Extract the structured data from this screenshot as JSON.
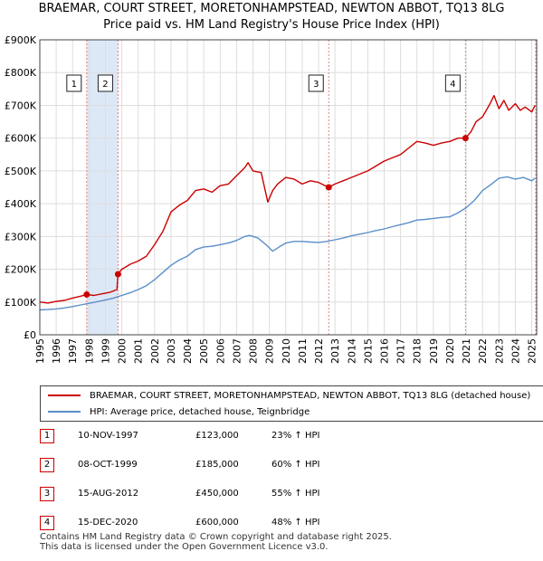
{
  "title_line1": "BRAEMAR, COURT STREET, MORETONHAMPSTEAD, NEWTON ABBOT, TQ13 8LG",
  "title_line2": "Price paid vs. HM Land Registry's House Price Index (HPI)",
  "colors": {
    "property": "#cc0000",
    "hpi": "#5b8fc9",
    "span": "#dde8f7",
    "grid": "#dddddd",
    "vline": "#e08080"
  },
  "chart_data": {
    "type": "line",
    "title": "Price paid vs. HM Land Registry's House Price Index (HPI)",
    "xlim": [
      1995,
      2025.3
    ],
    "ylim": [
      0,
      900000
    ],
    "x_ticks": [
      1995,
      1996,
      1997,
      1998,
      1999,
      2000,
      2001,
      2002,
      2003,
      2004,
      2005,
      2006,
      2007,
      2008,
      2009,
      2010,
      2011,
      2012,
      2013,
      2014,
      2015,
      2016,
      2017,
      2018,
      2019,
      2020,
      2021,
      2022,
      2023,
      2024,
      2025
    ],
    "y_ticks": [
      0,
      100000,
      200000,
      300000,
      400000,
      500000,
      600000,
      700000,
      800000,
      900000
    ],
    "y_tick_labels": [
      "£0",
      "£100K",
      "£200K",
      "£300K",
      "£400K",
      "£500K",
      "£600K",
      "£700K",
      "£800K",
      "£900K"
    ],
    "grid": true,
    "series": [
      {
        "name": "BRAEMAR, COURT STREET, MORETONHAMPSTEAD, NEWTON ABBOT, TQ13 8LG (detached house)",
        "x": [
          1995.0,
          1995.5,
          1996.0,
          1996.5,
          1997.0,
          1997.5,
          1997.86,
          1998.3,
          1998.8,
          1999.3,
          1999.7,
          1999.77,
          2000.0,
          2000.5,
          2001.0,
          2001.5,
          2002.0,
          2002.5,
          2003.0,
          2003.5,
          2004.0,
          2004.5,
          2005.0,
          2005.5,
          2006.0,
          2006.5,
          2007.0,
          2007.5,
          2007.7,
          2008.0,
          2008.5,
          2008.9,
          2009.2,
          2009.5,
          2010.0,
          2010.5,
          2011.0,
          2011.5,
          2012.0,
          2012.4,
          2012.62,
          2013.0,
          2013.5,
          2014.0,
          2014.5,
          2015.0,
          2015.5,
          2016.0,
          2016.5,
          2017.0,
          2017.5,
          2018.0,
          2018.5,
          2019.0,
          2019.5,
          2020.0,
          2020.5,
          2020.96,
          2021.3,
          2021.6,
          2022.0,
          2022.4,
          2022.7,
          2023.0,
          2023.3,
          2023.6,
          2024.0,
          2024.3,
          2024.6,
          2025.0,
          2025.2
        ],
        "y": [
          100000,
          97000,
          102000,
          105000,
          112000,
          118000,
          123000,
          120000,
          125000,
          130000,
          138000,
          185000,
          200000,
          215000,
          225000,
          240000,
          275000,
          315000,
          375000,
          395000,
          410000,
          440000,
          445000,
          435000,
          455000,
          460000,
          485000,
          510000,
          525000,
          500000,
          495000,
          405000,
          440000,
          460000,
          480000,
          475000,
          460000,
          470000,
          465000,
          455000,
          450000,
          460000,
          470000,
          480000,
          490000,
          500000,
          515000,
          530000,
          540000,
          550000,
          570000,
          590000,
          585000,
          578000,
          585000,
          590000,
          600000,
          600000,
          620000,
          650000,
          665000,
          700000,
          730000,
          690000,
          715000,
          685000,
          705000,
          685000,
          695000,
          680000,
          700000
        ]
      },
      {
        "name": "HPI: Average price, detached house, Teignbridge",
        "x": [
          1995.0,
          1995.5,
          1996.0,
          1996.5,
          1997.0,
          1997.5,
          1998.0,
          1998.5,
          1999.0,
          1999.5,
          2000.0,
          2000.5,
          2001.0,
          2001.5,
          2002.0,
          2002.5,
          2003.0,
          2003.5,
          2004.0,
          2004.5,
          2005.0,
          2005.5,
          2006.0,
          2006.5,
          2007.0,
          2007.5,
          2007.8,
          2008.3,
          2008.8,
          2009.2,
          2009.6,
          2010.0,
          2010.5,
          2011.0,
          2011.5,
          2012.0,
          2012.5,
          2013.0,
          2013.5,
          2014.0,
          2014.5,
          2015.0,
          2015.5,
          2016.0,
          2016.5,
          2017.0,
          2017.5,
          2018.0,
          2018.5,
          2019.0,
          2019.5,
          2020.0,
          2020.5,
          2021.0,
          2021.5,
          2022.0,
          2022.5,
          2023.0,
          2023.5,
          2024.0,
          2024.5,
          2025.0,
          2025.2
        ],
        "y": [
          76000,
          77000,
          79000,
          82000,
          86000,
          91000,
          96000,
          101000,
          106000,
          112000,
          120000,
          128000,
          138000,
          150000,
          168000,
          190000,
          212000,
          228000,
          240000,
          260000,
          268000,
          270000,
          275000,
          280000,
          288000,
          300000,
          303000,
          295000,
          275000,
          255000,
          268000,
          280000,
          285000,
          285000,
          283000,
          282000,
          285000,
          290000,
          295000,
          302000,
          307000,
          312000,
          318000,
          323000,
          330000,
          336000,
          342000,
          350000,
          352000,
          355000,
          358000,
          360000,
          372000,
          388000,
          410000,
          440000,
          458000,
          478000,
          482000,
          475000,
          480000,
          470000,
          478000
        ]
      }
    ],
    "sale_markers": [
      {
        "label": "1",
        "x": 1997.86,
        "y": 123000
      },
      {
        "label": "2",
        "x": 1999.77,
        "y": 185000
      },
      {
        "label": "3",
        "x": 2012.62,
        "y": 450000
      },
      {
        "label": "4",
        "x": 2020.96,
        "y": 600000
      }
    ],
    "shaded_span": [
      1997.86,
      1999.77
    ]
  },
  "legend": {
    "property": "BRAEMAR, COURT STREET, MORETONHAMPSTEAD, NEWTON ABBOT, TQ13 8LG (detached house)",
    "hpi": "HPI: Average price, detached house, Teignbridge"
  },
  "sales": [
    {
      "num": "1",
      "date": "10-NOV-1997",
      "price": "£123,000",
      "hpi": "23% ↑ HPI"
    },
    {
      "num": "2",
      "date": "08-OCT-1999",
      "price": "£185,000",
      "hpi": "60% ↑ HPI"
    },
    {
      "num": "3",
      "date": "15-AUG-2012",
      "price": "£450,000",
      "hpi": "55% ↑ HPI"
    },
    {
      "num": "4",
      "date": "15-DEC-2020",
      "price": "£600,000",
      "hpi": "48% ↑ HPI"
    }
  ],
  "footer_line1": "Contains HM Land Registry data © Crown copyright and database right 2025.",
  "footer_line2": "This data is licensed under the Open Government Licence v3.0."
}
